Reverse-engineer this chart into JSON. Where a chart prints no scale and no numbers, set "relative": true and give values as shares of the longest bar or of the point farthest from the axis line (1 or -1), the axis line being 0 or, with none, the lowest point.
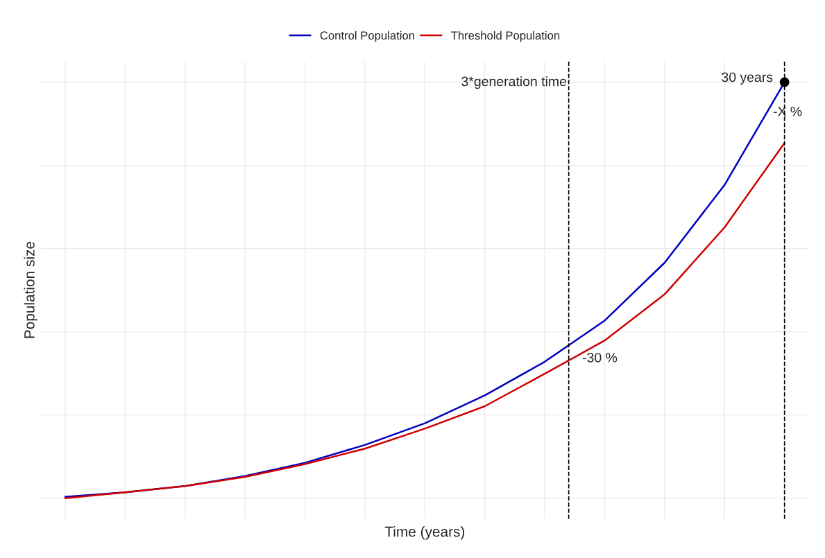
{
  "chart_data": {
    "type": "line",
    "relative": true,
    "xlabel": "Time (years)",
    "ylabel": "Population size",
    "categories": [
      null,
      null,
      null,
      null,
      null,
      null,
      null,
      null,
      null,
      null,
      null,
      null,
      null
    ],
    "series": [
      {
        "name": "Control Population",
        "color": "#0000c0",
        "values": [
          0.003,
          0.014,
          0.029,
          0.053,
          0.085,
          0.128,
          0.18,
          0.247,
          0.328,
          0.427,
          0.566,
          0.753,
          1
        ]
      },
      {
        "name": "Threshold Population",
        "color": "#d00000",
        "values": [
          0,
          0.014,
          0.029,
          0.051,
          0.082,
          0.119,
          0.167,
          0.221,
          0.299,
          0.379,
          0.49,
          0.651,
          0.854
        ]
      }
    ],
    "annotations": [
      "3*generation time",
      "30 years",
      "-X %",
      "-30 %"
    ],
    "grid": true,
    "legend": "top"
  }
}
